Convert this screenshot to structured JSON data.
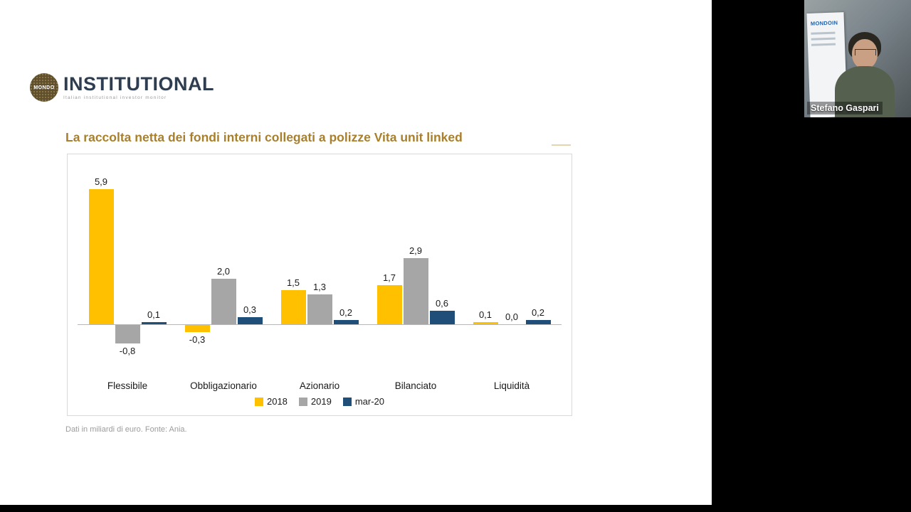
{
  "slide": {
    "logo": {
      "circle_text": "MONDO",
      "brand": "INSTITUTIONAL",
      "tagline": "Italian institutional investor monitor"
    },
    "title": "La raccolta netta dei fondi interni collegati a polizze Vita unit linked",
    "footnote": "Dati in miliardi di euro. Fonte: Ania."
  },
  "meeting": {
    "participant_name": "Stefano Gaspari",
    "webcam_banner_text": "MONDOIN"
  },
  "chart_data": {
    "type": "bar",
    "title": "La raccolta netta dei fondi interni collegati a polizze Vita unit linked",
    "categories": [
      "Flessibile",
      "Obbligazionario",
      "Azionario",
      "Bilanciato",
      "Liquidità"
    ],
    "series": [
      {
        "name": "2018",
        "color": "#FFC000",
        "values": [
          5.9,
          -0.3,
          1.5,
          1.7,
          0.1
        ]
      },
      {
        "name": "2019",
        "color": "#A6A6A6",
        "values": [
          -0.8,
          2.0,
          1.3,
          2.9,
          0.0
        ]
      },
      {
        "name": "mar-20",
        "color": "#1F4E79",
        "values": [
          0.1,
          0.3,
          0.2,
          0.6,
          0.2
        ]
      }
    ],
    "xlabel": "",
    "ylabel": "",
    "ylim": [
      -1.2,
      6.5
    ],
    "grid": false,
    "legend_position": "bottom",
    "value_labels": true,
    "decimal_separator": ",",
    "units": "miliardi di euro"
  }
}
